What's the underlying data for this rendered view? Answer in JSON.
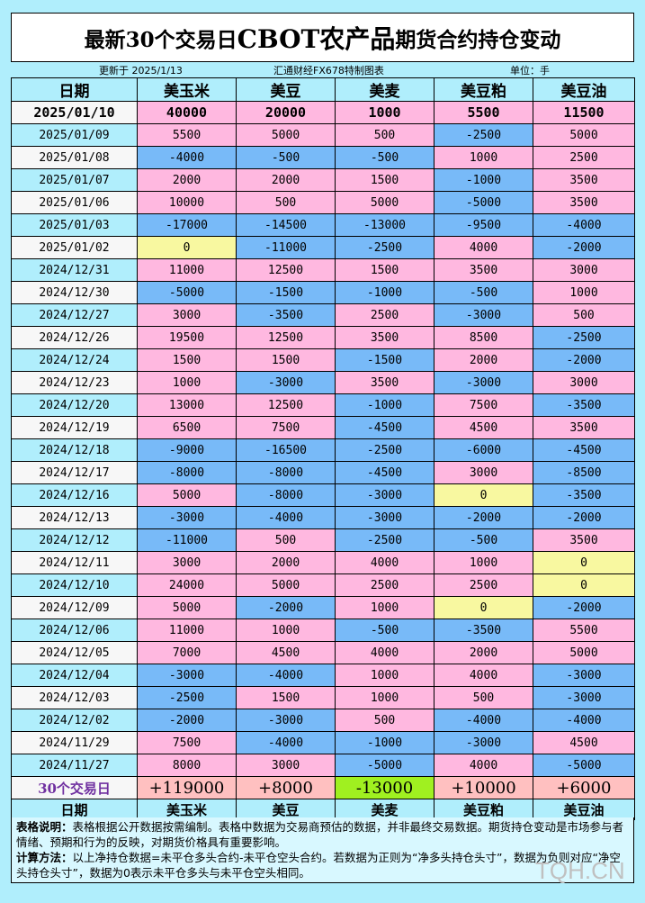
{
  "title": {
    "part1": "最新30个交易日",
    "part2": "CBOT农产品",
    "part3": "期货合约持仓变动"
  },
  "subheader": {
    "updated": "更新于 2025/1/13",
    "source": "汇通财经FX678特制图表",
    "unit": "单位：手"
  },
  "columns": [
    "日期",
    "美玉米",
    "美豆",
    "美麦",
    "美豆粕",
    "美豆油"
  ],
  "colors": {
    "positive": "#ffb8e0",
    "negative": "#78baf8",
    "zero": "#f8f8a0",
    "total": "#ffc0c0",
    "total_negative": "#a0f020",
    "background": "#b0eefc"
  },
  "latest": {
    "date": "2025/01/10",
    "values": [
      "40000",
      "20000",
      "1000",
      "5500",
      "11500"
    ]
  },
  "rows": [
    {
      "date": "2025/01/09",
      "values": [
        "5500",
        "5000",
        "500",
        "-2500",
        "5000"
      ]
    },
    {
      "date": "2025/01/08",
      "values": [
        "-4000",
        "-500",
        "-500",
        "1000",
        "2500"
      ]
    },
    {
      "date": "2025/01/07",
      "values": [
        "2000",
        "2000",
        "1500",
        "-1000",
        "3500"
      ]
    },
    {
      "date": "2025/01/06",
      "values": [
        "10000",
        "500",
        "5000",
        "-5000",
        "3500"
      ]
    },
    {
      "date": "2025/01/03",
      "values": [
        "-17000",
        "-14500",
        "-13000",
        "-9500",
        "-4000"
      ]
    },
    {
      "date": "2025/01/02",
      "values": [
        "0",
        "-11000",
        "-2500",
        "4000",
        "-2000"
      ]
    },
    {
      "date": "2024/12/31",
      "values": [
        "11000",
        "12500",
        "1500",
        "3500",
        "3000"
      ]
    },
    {
      "date": "2024/12/30",
      "values": [
        "-5000",
        "-1500",
        "-1000",
        "-500",
        "1000"
      ]
    },
    {
      "date": "2024/12/27",
      "values": [
        "3000",
        "-3500",
        "2500",
        "-3000",
        "500"
      ]
    },
    {
      "date": "2024/12/26",
      "values": [
        "19500",
        "12500",
        "3500",
        "8500",
        "-2500"
      ]
    },
    {
      "date": "2024/12/24",
      "values": [
        "1500",
        "1500",
        "-1500",
        "2000",
        "-2000"
      ]
    },
    {
      "date": "2024/12/23",
      "values": [
        "1000",
        "-3000",
        "3500",
        "-3000",
        "3000"
      ]
    },
    {
      "date": "2024/12/20",
      "values": [
        "13000",
        "12500",
        "-1000",
        "7500",
        "-3500"
      ]
    },
    {
      "date": "2024/12/19",
      "values": [
        "6500",
        "7500",
        "-4500",
        "4500",
        "3500"
      ]
    },
    {
      "date": "2024/12/18",
      "values": [
        "-9000",
        "-16500",
        "-2500",
        "-6000",
        "-4500"
      ]
    },
    {
      "date": "2024/12/17",
      "values": [
        "-8000",
        "-8000",
        "-4500",
        "3000",
        "-8500"
      ]
    },
    {
      "date": "2024/12/16",
      "values": [
        "5000",
        "-8000",
        "-3000",
        "0",
        "-3500"
      ]
    },
    {
      "date": "2024/12/13",
      "values": [
        "-3000",
        "-4000",
        "-3000",
        "-2000",
        "-2000"
      ]
    },
    {
      "date": "2024/12/12",
      "values": [
        "-11000",
        "500",
        "-2500",
        "-500",
        "3500"
      ]
    },
    {
      "date": "2024/12/11",
      "values": [
        "3000",
        "2000",
        "4000",
        "1000",
        "0"
      ]
    },
    {
      "date": "2024/12/10",
      "values": [
        "24000",
        "5000",
        "2500",
        "2500",
        "0"
      ]
    },
    {
      "date": "2024/12/09",
      "values": [
        "5000",
        "-2000",
        "1000",
        "0",
        "-2000"
      ]
    },
    {
      "date": "2024/12/06",
      "values": [
        "11000",
        "1000",
        "-500",
        "-3500",
        "5500"
      ]
    },
    {
      "date": "2024/12/05",
      "values": [
        "7000",
        "4500",
        "4000",
        "2000",
        "5000"
      ]
    },
    {
      "date": "2024/12/04",
      "values": [
        "-3000",
        "-4000",
        "1000",
        "4000",
        "-3000"
      ]
    },
    {
      "date": "2024/12/03",
      "values": [
        "-2500",
        "1500",
        "1000",
        "500",
        "-3000"
      ]
    },
    {
      "date": "2024/12/02",
      "values": [
        "-2000",
        "-3000",
        "500",
        "-4000",
        "-4000"
      ]
    },
    {
      "date": "2024/11/29",
      "values": [
        "7500",
        "-4000",
        "-1000",
        "-3000",
        "4500"
      ]
    },
    {
      "date": "2024/11/27",
      "values": [
        "8000",
        "3000",
        "-5000",
        "4000",
        "-5000"
      ]
    }
  ],
  "totals": {
    "label": "30个交易日",
    "values": [
      "+119000",
      "+8000",
      "-13000",
      "+10000",
      "+6000"
    ]
  },
  "notes": {
    "desc_label": "表格说明：",
    "desc_text": "表格根据公开数据按需编制。表格中数据为交易商预估的数据，并非最终交易数据。期货持仓变动是市场参与者情绪、预期和行为的反映，对期货价格具有重要影响。",
    "calc_label": "计算方法：",
    "calc_text": "以上净持仓数据=未平仓多头合约-未平仓空头合约。若数据为正则为“净多头持仓头寸”，数据为负则对应“净空头持仓头寸”，数据为0表示未平仓多头与未平仓空头相同。"
  },
  "watermark": "TQH.CN"
}
